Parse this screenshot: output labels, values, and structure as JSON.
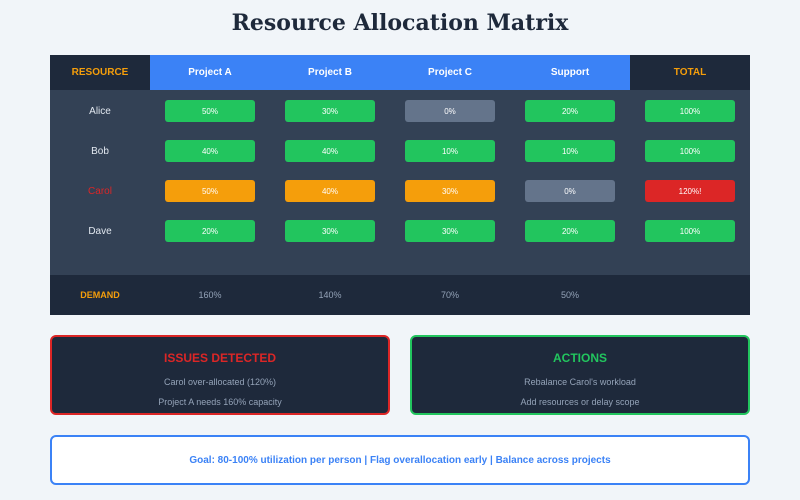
{
  "title": "Resource Allocation Matrix",
  "table": {
    "header": [
      "RESOURCE",
      "Project A",
      "Project B",
      "Project C",
      "Support",
      "TOTAL"
    ],
    "rows": [
      {
        "name": "Alice",
        "name_color": "#e2e8f0",
        "cells": [
          {
            "text": "50%",
            "color": "#22c55e"
          },
          {
            "text": "30%",
            "color": "#22c55e"
          },
          {
            "text": "0%",
            "color": "#64748b"
          },
          {
            "text": "20%",
            "color": "#22c55e"
          },
          {
            "text": "100%",
            "color": "#22c55e"
          }
        ]
      },
      {
        "name": "Bob",
        "name_color": "#e2e8f0",
        "cells": [
          {
            "text": "40%",
            "color": "#22c55e"
          },
          {
            "text": "40%",
            "color": "#22c55e"
          },
          {
            "text": "10%",
            "color": "#22c55e"
          },
          {
            "text": "10%",
            "color": "#22c55e"
          },
          {
            "text": "100%",
            "color": "#22c55e"
          }
        ]
      },
      {
        "name": "Carol",
        "name_color": "#dc2626",
        "cells": [
          {
            "text": "50%",
            "color": "#f59e0b"
          },
          {
            "text": "40%",
            "color": "#f59e0b"
          },
          {
            "text": "30%",
            "color": "#f59e0b"
          },
          {
            "text": "0%",
            "color": "#64748b"
          },
          {
            "text": "120%!",
            "color": "#dc2626"
          }
        ]
      },
      {
        "name": "Dave",
        "name_color": "#e2e8f0",
        "cells": [
          {
            "text": "20%",
            "color": "#22c55e"
          },
          {
            "text": "30%",
            "color": "#22c55e"
          },
          {
            "text": "30%",
            "color": "#22c55e"
          },
          {
            "text": "20%",
            "color": "#22c55e"
          },
          {
            "text": "100%",
            "color": "#22c55e"
          }
        ]
      }
    ],
    "demand": {
      "label": "DEMAND",
      "values": [
        "160%",
        "140%",
        "70%",
        "50%"
      ]
    }
  },
  "issues": {
    "title": "ISSUES DETECTED",
    "lines": [
      "Carol over-allocated (120%)",
      "Project A needs 160% capacity"
    ]
  },
  "actions": {
    "title": "ACTIONS",
    "lines": [
      "Rebalance Carol's workload",
      "Add resources or delay scope"
    ]
  },
  "goal": "Goal: 80-100% utilization per person | Flag overallocation early | Balance across projects"
}
